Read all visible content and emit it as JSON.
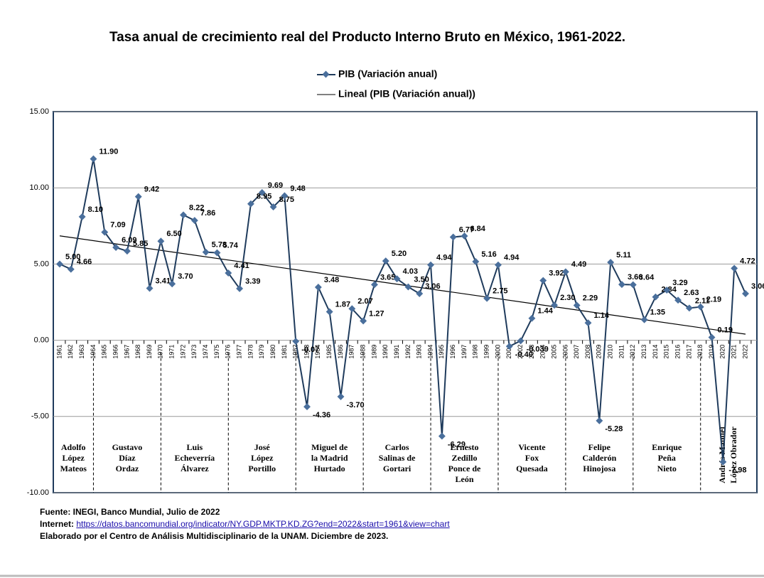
{
  "chart_data": {
    "type": "line",
    "title": "Tasa anual de crecimiento real del Producto Interno Bruto en México, 1961-2022.",
    "categories": [
      "1961",
      "1962",
      "1963",
      "1964",
      "1965",
      "1966",
      "1967",
      "1968",
      "1969",
      "1970",
      "1971",
      "1972",
      "1973",
      "1974",
      "1975",
      "1976",
      "1977",
      "1978",
      "1979",
      "1980",
      "1981",
      "1982",
      "1983",
      "1984",
      "1985",
      "1986",
      "1987",
      "1988",
      "1989",
      "1990",
      "1991",
      "1992",
      "1993",
      "1994",
      "1995",
      "1996",
      "1997",
      "1998",
      "1999",
      "2000",
      "2001",
      "2002",
      "2003",
      "2004",
      "2005",
      "2006",
      "2007",
      "2008",
      "2009",
      "2010",
      "2011",
      "2012",
      "2013",
      "2014",
      "2015",
      "2016",
      "2017",
      "2018",
      "2019",
      "2020",
      "2021",
      "2022"
    ],
    "series": [
      {
        "name": "PIB (Variación anual)",
        "color": "#4a6f9c",
        "values": [
          5.0,
          4.66,
          8.1,
          11.9,
          7.09,
          6.09,
          5.85,
          9.42,
          3.41,
          6.5,
          3.7,
          8.22,
          7.86,
          5.78,
          5.74,
          4.41,
          3.39,
          8.95,
          9.69,
          8.75,
          9.48,
          -0.07,
          -4.36,
          3.48,
          1.87,
          -3.7,
          2.07,
          1.27,
          3.65,
          5.2,
          4.03,
          3.5,
          3.06,
          4.94,
          -6.29,
          6.77,
          6.84,
          5.16,
          2.75,
          4.94,
          -0.4,
          -0.039,
          1.44,
          3.92,
          2.3,
          4.49,
          2.29,
          1.14,
          -5.28,
          5.11,
          3.66,
          3.64,
          1.35,
          2.84,
          3.29,
          2.63,
          2.11,
          2.19,
          0.19,
          -7.98,
          4.72,
          3.06
        ],
        "value_labels": [
          "5.00",
          "4.66",
          "8.10",
          "11.90",
          "7.09",
          "6.09",
          "5.85",
          "9.42",
          "3.41",
          "6.50",
          "3.70",
          "8.22",
          "7.86",
          "5.78",
          "5.74",
          "4.41",
          "3.39",
          "8.95",
          "9.69",
          "8.75",
          "9.48",
          "-0.07",
          "-4.36",
          "3.48",
          "1.87",
          "-3.70",
          "2.07",
          "1.27",
          "3.65",
          "5.20",
          "4.03",
          "3.50",
          "3.06",
          "4.94",
          "-6.29",
          "6.77",
          "6.84",
          "5.16",
          "2.75",
          "4.94",
          "-0.40",
          "-0.039",
          "1.44",
          "3.92",
          "2.30",
          "4.49",
          "2.29",
          "1.14",
          "-5.28",
          "5.11",
          "3.66",
          "3.64",
          "1.35",
          "2.84",
          "3.29",
          "2.63",
          "2.11",
          "2.19",
          "0.19",
          "-7.98",
          "4.72",
          "3.06"
        ]
      }
    ],
    "trend": {
      "name": "Lineal (PIB (Variación anual))",
      "color": "#000000",
      "x": [
        "1961",
        "2022"
      ],
      "values": [
        6.85,
        0.4
      ]
    },
    "ylim": [
      -10,
      15
    ],
    "yticks": [
      {
        "value": -10,
        "label": "-10.00"
      },
      {
        "value": -5,
        "label": "-5.00"
      },
      {
        "value": 0,
        "label": "0.00"
      },
      {
        "value": 5,
        "label": "5.00"
      },
      {
        "value": 10,
        "label": "10.00"
      },
      {
        "value": 15,
        "label": "15.00"
      }
    ],
    "grid": true,
    "periods": [
      {
        "label": [
          "Adolfo",
          "López",
          "Mateos"
        ],
        "end": "1964"
      },
      {
        "label": [
          "Gustavo",
          "Díaz",
          "Ordaz"
        ],
        "end": "1970"
      },
      {
        "label": [
          "Luis",
          "Echeverría",
          "Álvarez"
        ],
        "end": "1976"
      },
      {
        "label": [
          "José",
          "López",
          "Portillo"
        ],
        "end": "1982"
      },
      {
        "label": [
          "Miguel de",
          "la Madrid",
          "Hurtado"
        ],
        "end": "1988"
      },
      {
        "label": [
          "Carlos",
          "Salinas de",
          "Gortari"
        ],
        "end": "1994"
      },
      {
        "label": [
          "Ernesto",
          "Zedillo",
          "Ponce de",
          "León"
        ],
        "end": "2000"
      },
      {
        "label": [
          "Vicente",
          "Fox",
          "Quesada"
        ],
        "end": "2006"
      },
      {
        "label": [
          "Felipe",
          "Calderón",
          "Hinojosa"
        ],
        "end": "2012"
      },
      {
        "label": [
          "Enrique",
          "Peña",
          "Nieto"
        ],
        "end": "2018"
      },
      {
        "label": [
          "Andrés Manuel",
          "López Obrador"
        ]
      }
    ]
  },
  "footer": {
    "source": "Fuente: INEGI, Banco Mundial, Julio de 2022",
    "internet_label": "Internet:",
    "internet_url": "https://datos.bancomundial.org/indicator/NY.GDP.MKTP.KD.ZG?end=2022&start=1961&view=chart",
    "credit": "Elaborado por el Centro de Análisis Multidisciplinario de la UNAM. Diciembre de 2023."
  }
}
